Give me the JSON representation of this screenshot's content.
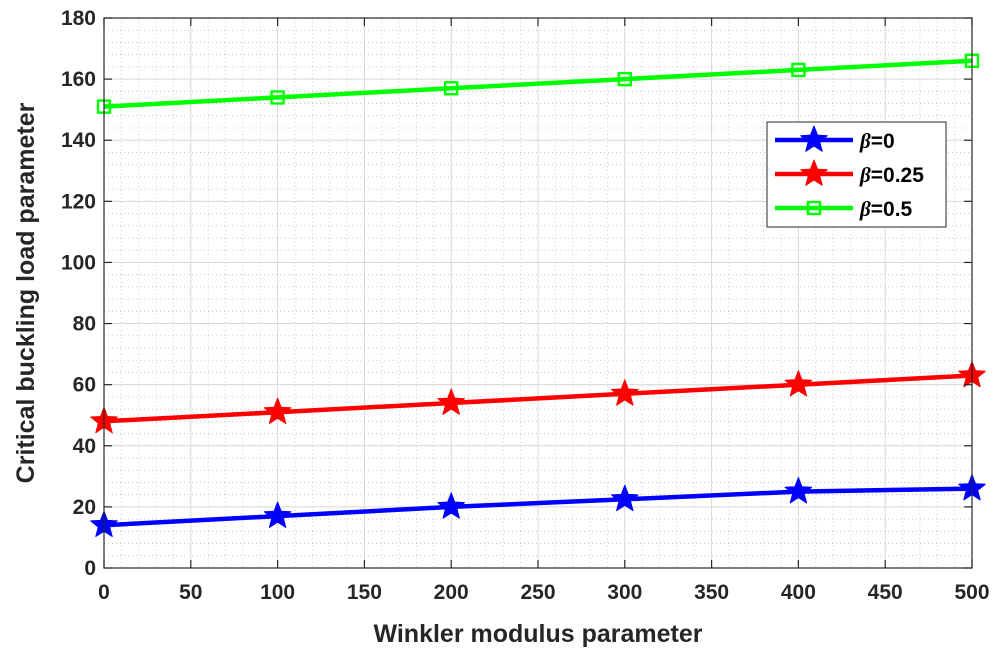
{
  "chart_data": {
    "type": "line",
    "xlabel": "Winkler modulus parameter",
    "ylabel": "Critical buckling load parameter",
    "xlim": [
      0,
      500
    ],
    "ylim": [
      0,
      180
    ],
    "xticks": [
      0,
      50,
      100,
      150,
      200,
      250,
      300,
      350,
      400,
      450,
      500
    ],
    "yticks": [
      0,
      20,
      40,
      60,
      80,
      100,
      120,
      140,
      160,
      180
    ],
    "grid": true,
    "minor_grid": true,
    "legend_position": "right",
    "x": [
      0,
      100,
      200,
      300,
      400,
      500
    ],
    "series": [
      {
        "name": "β=0",
        "symbol": "β",
        "suffix": "=0",
        "color": "#0000ff",
        "marker": "star",
        "values": [
          14,
          17,
          20,
          22.5,
          25,
          26
        ]
      },
      {
        "name": "β=0.25",
        "symbol": "β",
        "suffix": "=0.25",
        "color": "#ff0000",
        "marker": "star",
        "values": [
          48,
          51,
          54,
          57,
          60,
          63
        ]
      },
      {
        "name": "β=0.5",
        "symbol": "β",
        "suffix": "=0.5",
        "color": "#00ff00",
        "marker": "square",
        "values": [
          151,
          154,
          157,
          160,
          163,
          166
        ]
      }
    ]
  }
}
